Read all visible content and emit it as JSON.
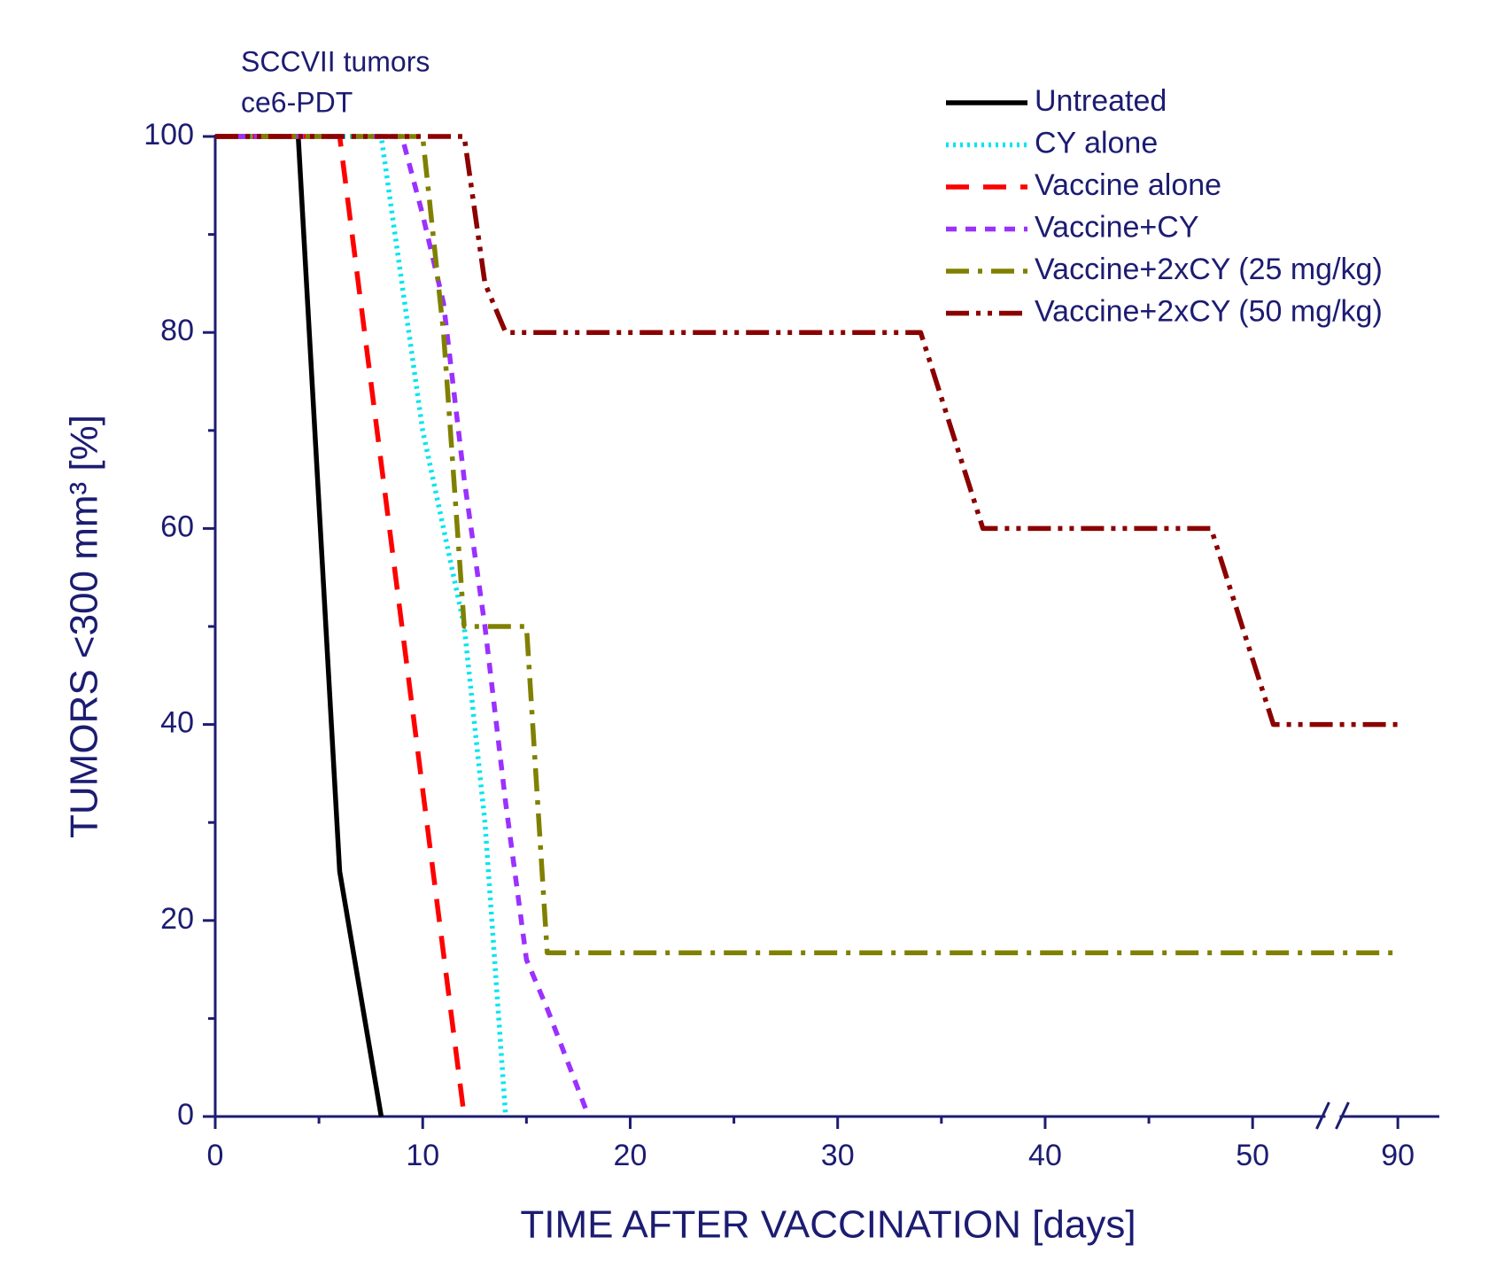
{
  "chart_data": {
    "type": "line",
    "annotations": [
      "SCCVII tumors",
      "ce6-PDT"
    ],
    "xlabel": "TIME AFTER VACCINATION [days]",
    "ylabel": "TUMORS <300 mm³ [%]",
    "xlim": [
      0,
      92
    ],
    "axis_break": [
      53,
      88
    ],
    "xticks": [
      0,
      10,
      20,
      30,
      40,
      50,
      90
    ],
    "ylim": [
      0,
      100
    ],
    "yticks": [
      0,
      20,
      40,
      60,
      80,
      100
    ],
    "legend": "upper right",
    "series": [
      {
        "name": "Untreated",
        "color": "#000000",
        "dash": "solid",
        "x": [
          0,
          4,
          6,
          8
        ],
        "values": [
          100,
          100,
          25,
          0
        ]
      },
      {
        "name": "CY alone",
        "color": "#00e5ee",
        "dash": "dotted",
        "x": [
          0,
          8,
          9,
          10,
          11,
          12,
          13,
          14
        ],
        "values": [
          100,
          100,
          85,
          70,
          60,
          50,
          30,
          0
        ]
      },
      {
        "name": "Vaccine alone",
        "color": "#ff0000",
        "dash": "dashed",
        "x": [
          0,
          6,
          12
        ],
        "values": [
          100,
          100,
          0
        ]
      },
      {
        "name": "Vaccine+CY",
        "color": "#9b30ff",
        "dash": "short-dash",
        "x": [
          0,
          9,
          10,
          11,
          12,
          13,
          14,
          15,
          16,
          18
        ],
        "values": [
          100,
          100,
          92,
          83,
          65,
          50,
          32,
          16,
          11,
          0
        ]
      },
      {
        "name": "Vaccine+2xCY (25 mg/kg)",
        "color": "#808000",
        "dash": "dash-dot",
        "x": [
          0,
          10,
          11,
          12,
          15,
          16,
          90
        ],
        "values": [
          100,
          100,
          80,
          50,
          50,
          16.7,
          16.7
        ]
      },
      {
        "name": "Vaccine+2xCY (50 mg/kg)",
        "color": "#8b0000",
        "dash": "dash-dot-dot",
        "x": [
          0,
          12,
          13,
          14,
          34,
          37,
          48,
          51,
          90
        ],
        "values": [
          100,
          100,
          85,
          80,
          80,
          60,
          60,
          40,
          40
        ]
      }
    ]
  }
}
